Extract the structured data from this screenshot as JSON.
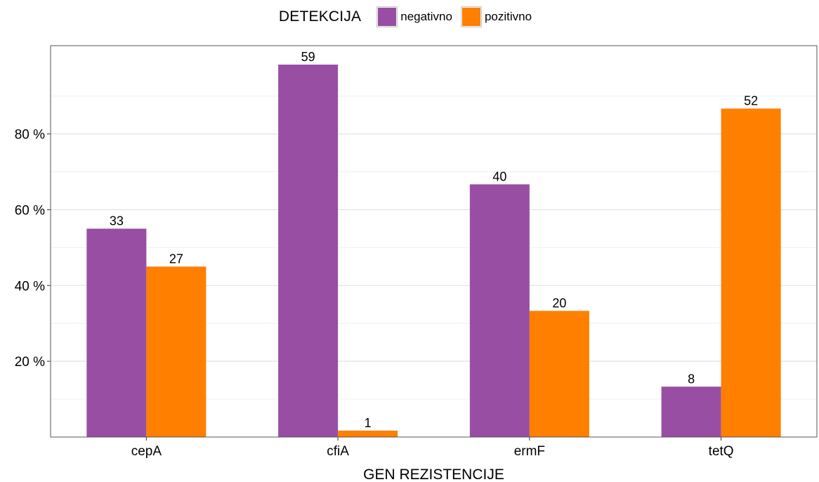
{
  "chart_data": {
    "type": "bar",
    "categories": [
      "cepA",
      "cfiA",
      "ermF",
      "tetQ"
    ],
    "series": [
      {
        "name": "negativno",
        "values": [
          55.0,
          98.3,
          66.7,
          13.3
        ],
        "labels": [
          "33",
          "59",
          "40",
          "8"
        ],
        "color": "#984ea3"
      },
      {
        "name": "pozitivno",
        "values": [
          45.0,
          1.7,
          33.3,
          86.7
        ],
        "labels": [
          "27",
          "1",
          "20",
          "52"
        ],
        "color": "#ff7f00"
      }
    ],
    "xlabel": "GEN REZISTENCIJE",
    "ylabel": "",
    "yticks": [
      20,
      40,
      60,
      80
    ],
    "ytick_labels": [
      "20 %",
      "40 %",
      "60 %",
      "80 %"
    ],
    "ylim": [
      0,
      103.3
    ],
    "grid": true,
    "legend": {
      "title": "DETEKCIJA",
      "position": "top",
      "entries": [
        "negativno",
        "pozitivno"
      ]
    }
  }
}
